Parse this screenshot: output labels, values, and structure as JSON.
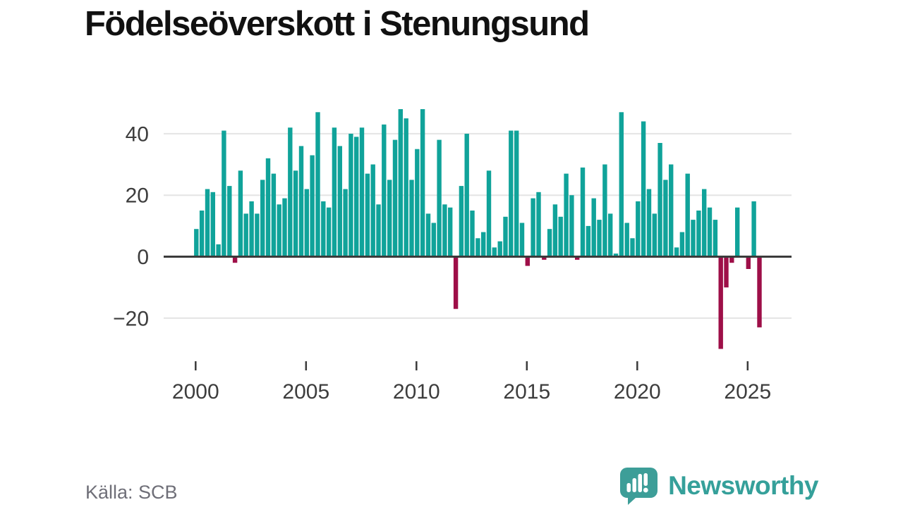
{
  "page": {
    "title": "Födelseöverskott i Stenungsund"
  },
  "footer": {
    "source": "Källa: SCB",
    "brand": "Newsworthy"
  },
  "colors": {
    "positive_bar": "#10a39a",
    "negative_bar": "#9e0f48",
    "axis": "#3b3b3b",
    "gridline": "#e4e4e4",
    "label": "#3d3d3d",
    "brand_teal": "#3d9e98"
  },
  "chart_data": {
    "type": "bar",
    "title": "Födelseöverskott i Stenungsund",
    "frequency": "quarterly",
    "start_period": "2000-Q1",
    "end_period": "2025-Q3",
    "grid": true,
    "ylim": [
      -33,
      50
    ],
    "y_ticks": [
      {
        "value": 40,
        "label": "40"
      },
      {
        "value": 20,
        "label": "20"
      },
      {
        "value": 0,
        "label": "0"
      },
      {
        "value": -20,
        "label": "−20"
      }
    ],
    "x_ticks": [
      {
        "year": 2000,
        "label": "2000"
      },
      {
        "year": 2005,
        "label": "2005"
      },
      {
        "year": 2010,
        "label": "2010"
      },
      {
        "year": 2015,
        "label": "2015"
      },
      {
        "year": 2020,
        "label": "2020"
      },
      {
        "year": 2025,
        "label": "2025"
      }
    ],
    "values": [
      9,
      15,
      22,
      21,
      4,
      41,
      23,
      -2,
      28,
      14,
      18,
      14,
      25,
      32,
      27,
      17,
      19,
      42,
      28,
      36,
      22,
      33,
      47,
      18,
      16,
      42,
      36,
      22,
      40,
      39,
      42,
      27,
      30,
      17,
      43,
      25,
      38,
      48,
      45,
      25,
      35,
      48,
      14,
      11,
      38,
      17,
      16,
      -17,
      23,
      40,
      15,
      6,
      8,
      28,
      3,
      5,
      13,
      41,
      41,
      11,
      -3,
      19,
      21,
      -1,
      9,
      17,
      13,
      27,
      20,
      -1,
      29,
      10,
      19,
      12,
      30,
      14,
      1,
      47,
      11,
      6,
      18,
      44,
      22,
      14,
      37,
      25,
      30,
      3,
      8,
      27,
      12,
      15,
      22,
      16,
      12,
      -30,
      -10,
      -2,
      16,
      0,
      -4,
      18,
      -23
    ],
    "positive_color": "#10a39a",
    "negative_color": "#9e0f48"
  }
}
